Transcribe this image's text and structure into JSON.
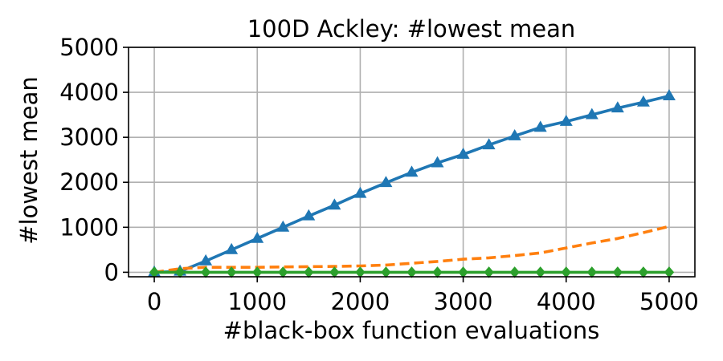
{
  "chart_data": {
    "type": "line",
    "title": "100D Ackley: #lowest mean",
    "xlabel": "#black-box function evaluations",
    "ylabel": "#lowest mean",
    "xlim": [
      -250,
      5250
    ],
    "ylim": [
      -100,
      5000
    ],
    "xticks": [
      0,
      1000,
      2000,
      3000,
      4000,
      5000
    ],
    "yticks": [
      0,
      1000,
      2000,
      3000,
      4000,
      5000
    ],
    "xtick_labels": [
      "0",
      "1000",
      "2000",
      "3000",
      "4000",
      "5000"
    ],
    "ytick_labels": [
      "0",
      "1000",
      "2000",
      "3000",
      "4000",
      "5000"
    ],
    "grid": true,
    "series": [
      {
        "color": "#1f77b4",
        "line_style": "solid",
        "marker": "triangle",
        "x": [
          0,
          250,
          500,
          750,
          1000,
          1250,
          1500,
          1750,
          2000,
          2250,
          2500,
          2750,
          3000,
          3250,
          3500,
          3750,
          4000,
          4250,
          4500,
          4750,
          5000
        ],
        "y": [
          0,
          20,
          250,
          500,
          750,
          1000,
          1250,
          1490,
          1750,
          1990,
          2220,
          2430,
          2620,
          2830,
          3030,
          3220,
          3350,
          3500,
          3650,
          3780,
          3920
        ]
      },
      {
        "color": "#ff7f0e",
        "line_style": "dashed",
        "marker": "none",
        "x": [
          0,
          250,
          500,
          750,
          1000,
          1250,
          1500,
          1750,
          2000,
          2250,
          2500,
          2750,
          3000,
          3250,
          3500,
          3750,
          4000,
          4250,
          4500,
          4750,
          5000
        ],
        "y": [
          0,
          80,
          110,
          110,
          110,
          120,
          125,
          130,
          140,
          160,
          200,
          240,
          290,
          320,
          370,
          430,
          540,
          650,
          750,
          880,
          1020
        ]
      },
      {
        "color": "#2ca02c",
        "line_style": "solid",
        "marker": "diamond",
        "x": [
          0,
          250,
          500,
          750,
          1000,
          1250,
          1500,
          1750,
          2000,
          2250,
          2500,
          2750,
          3000,
          3250,
          3500,
          3750,
          4000,
          4250,
          4500,
          4750,
          5000
        ],
        "y": [
          0,
          0,
          0,
          0,
          0,
          0,
          0,
          0,
          0,
          0,
          0,
          0,
          0,
          0,
          0,
          0,
          0,
          0,
          0,
          0,
          0
        ]
      }
    ]
  }
}
